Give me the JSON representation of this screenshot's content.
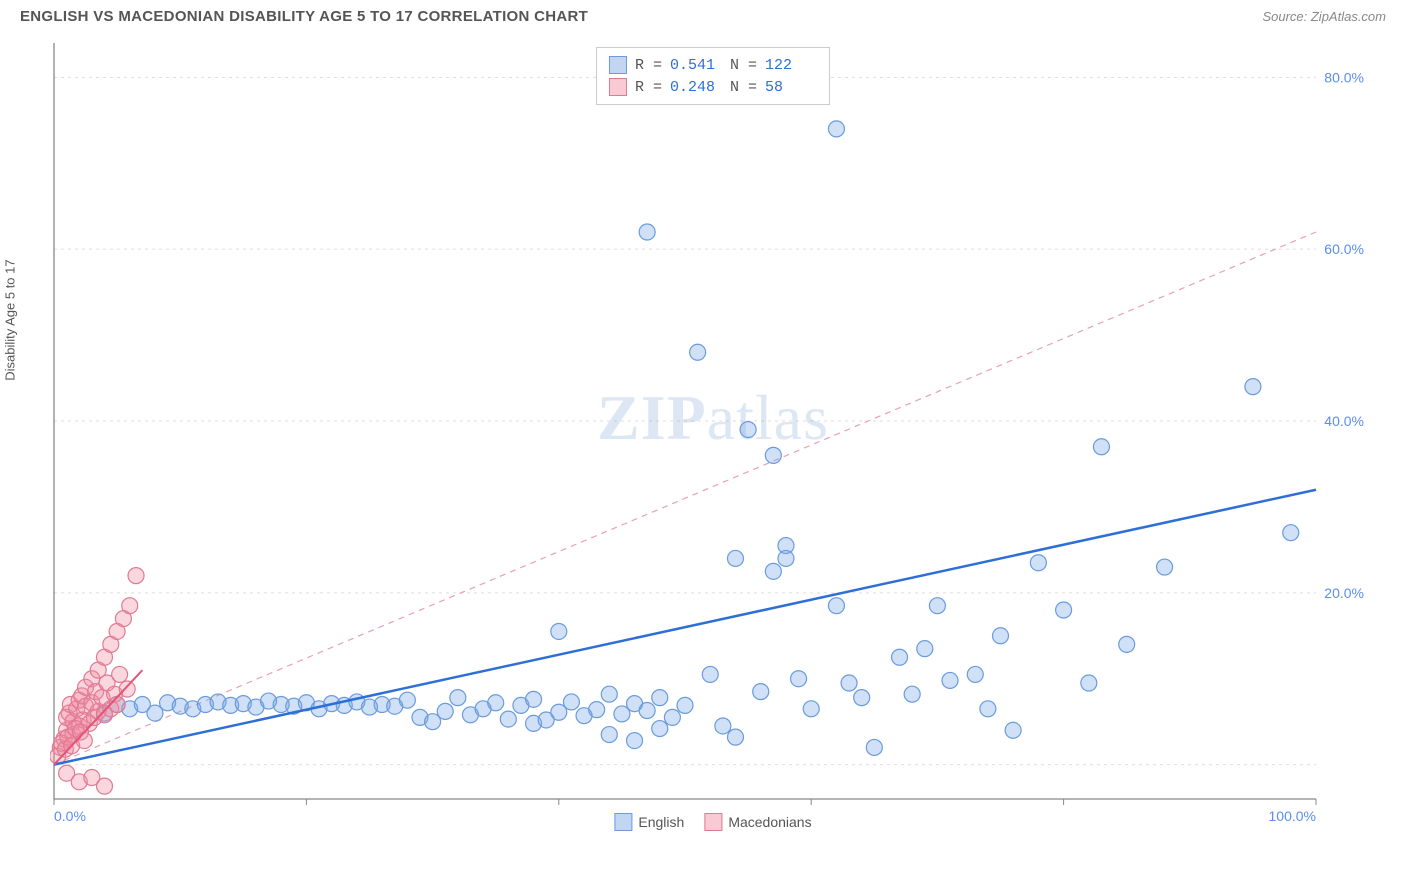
{
  "header": {
    "title": "ENGLISH VS MACEDONIAN DISABILITY AGE 5 TO 17 CORRELATION CHART",
    "source_label": "Source: ",
    "source_value": "ZipAtlas.com"
  },
  "watermark": {
    "zip": "ZIP",
    "atlas": "atlas"
  },
  "chart": {
    "type": "scatter",
    "y_axis_label": "Disability Age 5 to 17",
    "xlim": [
      0,
      100
    ],
    "ylim": [
      -4,
      84
    ],
    "x_ticks": [
      0,
      20,
      40,
      60,
      80,
      100
    ],
    "x_tick_labels": [
      "0.0%",
      "",
      "",
      "",
      "",
      "100.0%"
    ],
    "y_ticks": [
      0,
      20,
      40,
      60,
      80
    ],
    "y_tick_labels": [
      "",
      "20.0%",
      "40.0%",
      "60.0%",
      "80.0%"
    ],
    "background_color": "#ffffff",
    "grid_color": "#dddddd",
    "axis_color": "#888888",
    "tick_label_color": "#5b8def",
    "marker_radius": 8,
    "marker_stroke_width": 1.2,
    "series": [
      {
        "name": "English",
        "fill": "rgba(120,165,230,0.35)",
        "stroke": "#6a9bdc",
        "trend": {
          "x1": 0,
          "y1": 0,
          "x2": 100,
          "y2": 32,
          "color": "#2d6fd6",
          "width": 2.5,
          "dash": null
        },
        "points": [
          [
            4,
            6
          ],
          [
            5,
            7
          ],
          [
            6,
            6.5
          ],
          [
            7,
            7
          ],
          [
            8,
            6
          ],
          [
            9,
            7.2
          ],
          [
            10,
            6.8
          ],
          [
            11,
            6.5
          ],
          [
            12,
            7
          ],
          [
            13,
            7.3
          ],
          [
            14,
            6.9
          ],
          [
            15,
            7.1
          ],
          [
            16,
            6.7
          ],
          [
            17,
            7.4
          ],
          [
            18,
            7
          ],
          [
            19,
            6.8
          ],
          [
            20,
            7.2
          ],
          [
            21,
            6.5
          ],
          [
            22,
            7.1
          ],
          [
            23,
            6.9
          ],
          [
            24,
            7.3
          ],
          [
            25,
            6.7
          ],
          [
            26,
            7
          ],
          [
            27,
            6.8
          ],
          [
            28,
            7.5
          ],
          [
            29,
            5.5
          ],
          [
            30,
            5
          ],
          [
            31,
            6.2
          ],
          [
            32,
            7.8
          ],
          [
            33,
            5.8
          ],
          [
            34,
            6.5
          ],
          [
            35,
            7.2
          ],
          [
            36,
            5.3
          ],
          [
            37,
            6.9
          ],
          [
            38,
            7.6
          ],
          [
            38,
            4.8
          ],
          [
            39,
            5.2
          ],
          [
            40,
            6.1
          ],
          [
            40,
            15.5
          ],
          [
            41,
            7.3
          ],
          [
            42,
            5.7
          ],
          [
            43,
            6.4
          ],
          [
            44,
            8.2
          ],
          [
            44,
            3.5
          ],
          [
            45,
            5.9
          ],
          [
            46,
            7.1
          ],
          [
            46,
            2.8
          ],
          [
            47,
            6.3
          ],
          [
            48,
            7.8
          ],
          [
            48,
            4.2
          ],
          [
            49,
            5.5
          ],
          [
            50,
            6.9
          ],
          [
            52,
            10.5
          ],
          [
            53,
            4.5
          ],
          [
            54,
            3.2
          ],
          [
            54,
            24
          ],
          [
            55,
            39
          ],
          [
            56,
            8.5
          ],
          [
            57,
            22.5
          ],
          [
            57,
            36
          ],
          [
            58,
            25.5
          ],
          [
            58,
            24
          ],
          [
            59,
            10
          ],
          [
            60,
            6.5
          ],
          [
            62,
            18.5
          ],
          [
            63,
            9.5
          ],
          [
            64,
            7.8
          ],
          [
            65,
            2
          ],
          [
            67,
            12.5
          ],
          [
            68,
            8.2
          ],
          [
            69,
            13.5
          ],
          [
            70,
            18.5
          ],
          [
            71,
            9.8
          ],
          [
            73,
            10.5
          ],
          [
            74,
            6.5
          ],
          [
            75,
            15
          ],
          [
            76,
            4
          ],
          [
            78,
            23.5
          ],
          [
            80,
            18
          ],
          [
            82,
            9.5
          ],
          [
            83,
            37
          ],
          [
            85,
            14
          ],
          [
            88,
            23
          ],
          [
            95,
            44
          ],
          [
            98,
            27
          ],
          [
            51,
            48
          ],
          [
            47,
            62
          ],
          [
            62,
            74
          ]
        ]
      },
      {
        "name": "Macedonians",
        "fill": "rgba(240,140,160,0.35)",
        "stroke": "#e07a94",
        "trend_solid": {
          "x1": 0,
          "y1": 0,
          "x2": 7,
          "y2": 11,
          "color": "#e25578",
          "width": 2,
          "dash": null
        },
        "trend_dashed": {
          "x1": 0,
          "y1": 0,
          "x2": 100,
          "y2": 62,
          "color": "#e8a0b5",
          "width": 1.2,
          "dash": "6,5"
        },
        "points": [
          [
            0.5,
            2
          ],
          [
            0.8,
            3
          ],
          [
            1,
            4
          ],
          [
            1,
            5.5
          ],
          [
            1.2,
            6
          ],
          [
            1.3,
            7
          ],
          [
            1.5,
            3.5
          ],
          [
            1.5,
            5
          ],
          [
            1.8,
            6.5
          ],
          [
            2,
            4.5
          ],
          [
            2,
            7.5
          ],
          [
            2.2,
            8
          ],
          [
            2.3,
            5.2
          ],
          [
            2.5,
            6.8
          ],
          [
            2.5,
            9
          ],
          [
            2.8,
            4.8
          ],
          [
            3,
            7.2
          ],
          [
            3,
            10
          ],
          [
            3.2,
            5.5
          ],
          [
            3.3,
            8.5
          ],
          [
            3.5,
            6.2
          ],
          [
            3.5,
            11
          ],
          [
            3.8,
            7.8
          ],
          [
            4,
            5.8
          ],
          [
            4,
            12.5
          ],
          [
            4.2,
            9.5
          ],
          [
            4.5,
            6.5
          ],
          [
            4.5,
            14
          ],
          [
            4.8,
            8.2
          ],
          [
            5,
            15.5
          ],
          [
            5,
            7
          ],
          [
            5.2,
            10.5
          ],
          [
            5.5,
            17
          ],
          [
            5.8,
            8.8
          ],
          [
            6,
            18.5
          ],
          [
            6.5,
            22
          ],
          [
            1,
            -1
          ],
          [
            2,
            -2
          ],
          [
            3,
            -1.5
          ],
          [
            4,
            -2.5
          ],
          [
            0.3,
            1
          ],
          [
            0.6,
            2.5
          ],
          [
            0.9,
            1.8
          ],
          [
            1.1,
            3.2
          ],
          [
            1.4,
            2.2
          ],
          [
            1.7,
            4.2
          ],
          [
            2.1,
            3.8
          ],
          [
            2.4,
            2.8
          ]
        ]
      }
    ],
    "stats_legend": {
      "rows": [
        {
          "swatch_fill": "rgba(120,165,230,0.45)",
          "swatch_stroke": "#6a9bdc",
          "r_label": "R =",
          "r_value": "0.541",
          "n_label": "N =",
          "n_value": "122",
          "value_color": "#2d6fd6"
        },
        {
          "swatch_fill": "rgba(240,140,160,0.45)",
          "swatch_stroke": "#e07a94",
          "r_label": "R =",
          "r_value": "0.248",
          "n_label": "N =",
          "n_value": "58",
          "value_color": "#2d6fd6"
        }
      ]
    },
    "bottom_legend": {
      "items": [
        {
          "swatch_fill": "rgba(120,165,230,0.45)",
          "swatch_stroke": "#6a9bdc",
          "label": "English"
        },
        {
          "swatch_fill": "rgba(240,140,160,0.45)",
          "swatch_stroke": "#e07a94",
          "label": "Macedonians"
        }
      ]
    }
  }
}
